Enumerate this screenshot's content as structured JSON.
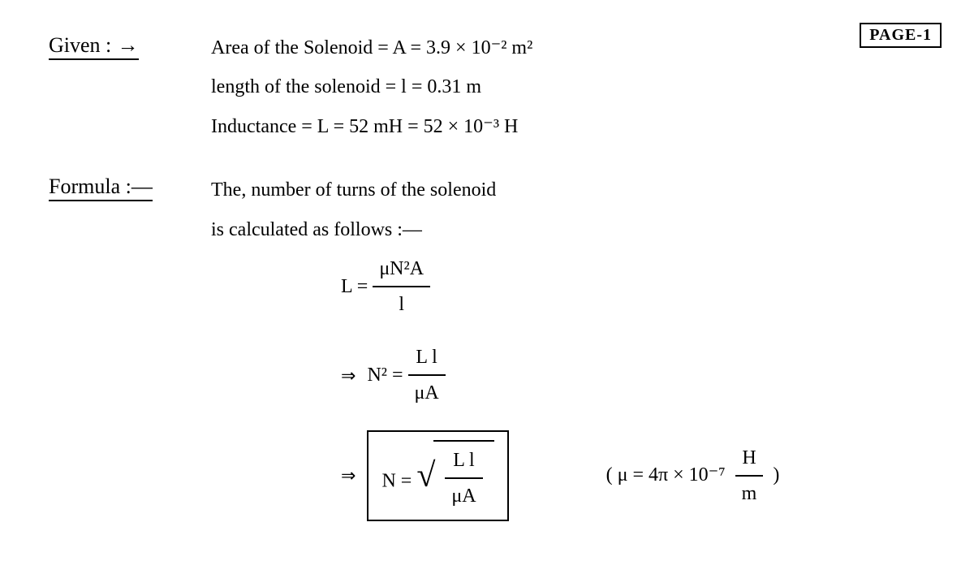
{
  "page_badge": "PAGE-1",
  "given": {
    "heading": "Given :",
    "lines": [
      "Area of the Solenoid = A = 3.9 × 10⁻² m²",
      "length of the solenoid = l = 0.31 m",
      "Inductance = L = 52 mH = 52 × 10⁻³ H"
    ]
  },
  "formula": {
    "heading": "Formula :—",
    "text_line1": "The, number of turns of the solenoid",
    "text_line2": "is calculated as follows :—",
    "eq1_lhs": "L =",
    "eq1_num": "μN²A",
    "eq1_den": "l",
    "eq2_lhs": "N² =",
    "eq2_num": "L l",
    "eq2_den": "μA",
    "eq3_lhs": "N =",
    "eq3_num": "L l",
    "eq3_den": "μA",
    "mu_note_open": "( μ = 4π × 10⁻⁷",
    "mu_note_num": "H",
    "mu_note_den": "m",
    "mu_note_close": ")"
  },
  "colors": {
    "ink": "#000000",
    "paper": "#ffffff"
  },
  "font_sizes": {
    "heading": 26,
    "body": 24,
    "badge": 20
  }
}
